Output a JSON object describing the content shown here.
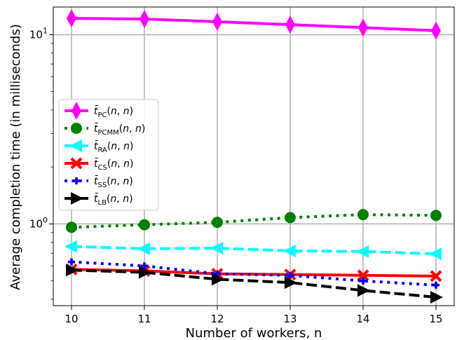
{
  "chart_data": {
    "type": "line",
    "xlabel": "Number of workers, n",
    "ylabel": "Average completion time (in milliseconds)",
    "x": [
      10,
      11,
      12,
      13,
      14,
      15
    ],
    "xlim": [
      9.75,
      15.25
    ],
    "ylim": [
      0.37,
      14.0
    ],
    "yscale": "log",
    "x_ticks": [
      "10",
      "11",
      "12",
      "13",
      "14",
      "15"
    ],
    "y_ticks": [
      {
        "value": 1,
        "base": "10",
        "exp": "0"
      },
      {
        "value": 10,
        "base": "10",
        "exp": "1"
      }
    ],
    "grid": true,
    "legend_position": "center-left",
    "series": [
      {
        "name": "PC",
        "color": "#ff00ff",
        "marker": "diamond",
        "dash": "solid",
        "width": 4,
        "values": [
          12.2,
          12.1,
          11.7,
          11.3,
          10.9,
          10.5
        ]
      },
      {
        "name": "PCMM",
        "color": "#008000",
        "marker": "circle",
        "dash": "dotted",
        "width": 4,
        "values": [
          0.96,
          0.99,
          1.02,
          1.08,
          1.12,
          1.11
        ]
      },
      {
        "name": "RA",
        "color": "#00ffff",
        "marker": "triangle-left",
        "dash": "dashed",
        "width": 4,
        "values": [
          0.76,
          0.74,
          0.745,
          0.72,
          0.715,
          0.695
        ]
      },
      {
        "name": "CS",
        "color": "#ff0000",
        "marker": "x",
        "dash": "solid",
        "width": 4,
        "values": [
          0.575,
          0.565,
          0.545,
          0.54,
          0.535,
          0.53
        ]
      },
      {
        "name": "SS",
        "color": "#0000ff",
        "marker": "plus",
        "dash": "dotted",
        "width": 4,
        "values": [
          0.63,
          0.6,
          0.545,
          0.535,
          0.5,
          0.475
        ]
      },
      {
        "name": "LB",
        "color": "#000000",
        "marker": "triangle-right",
        "dash": "dashed",
        "width": 4,
        "values": [
          0.57,
          0.555,
          0.51,
          0.49,
          0.445,
          0.41
        ]
      }
    ]
  }
}
